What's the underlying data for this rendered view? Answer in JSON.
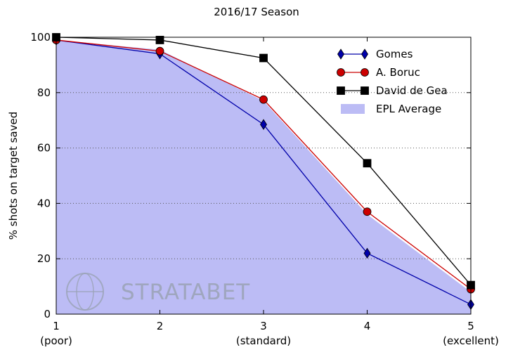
{
  "chart_data": {
    "type": "line",
    "title": "2016/17 Season",
    "y_label": "% shots on target saved",
    "x": [
      1,
      2,
      3,
      4,
      5
    ],
    "xlim": [
      1,
      5
    ],
    "xticks": [
      1,
      2,
      3,
      4,
      5
    ],
    "xtick_notes": [
      "(poor)",
      null,
      "(standard)",
      null,
      "(excellent)"
    ],
    "ylim": [
      0,
      100
    ],
    "yticks": [
      0,
      20,
      40,
      60,
      80,
      100
    ],
    "grid": true,
    "legend": "upper right",
    "watermark": "STRATABET",
    "series": [
      {
        "name": "Gomes",
        "color": "#0000aa",
        "marker": "diamond",
        "values": [
          99,
          94,
          68.5,
          22,
          3.5
        ]
      },
      {
        "name": "A. Boruc",
        "color": "#cc0000",
        "marker": "circle",
        "values": [
          99,
          95,
          77.5,
          37,
          9
        ]
      },
      {
        "name": "David de Gea",
        "color": "#000000",
        "marker": "square",
        "values": [
          100,
          99,
          92.5,
          54.5,
          10.5
        ]
      },
      {
        "name": "EPL Average",
        "color": "#bcbcf5",
        "style": "area",
        "values": [
          99,
          95.5,
          77,
          36,
          8
        ]
      }
    ]
  }
}
